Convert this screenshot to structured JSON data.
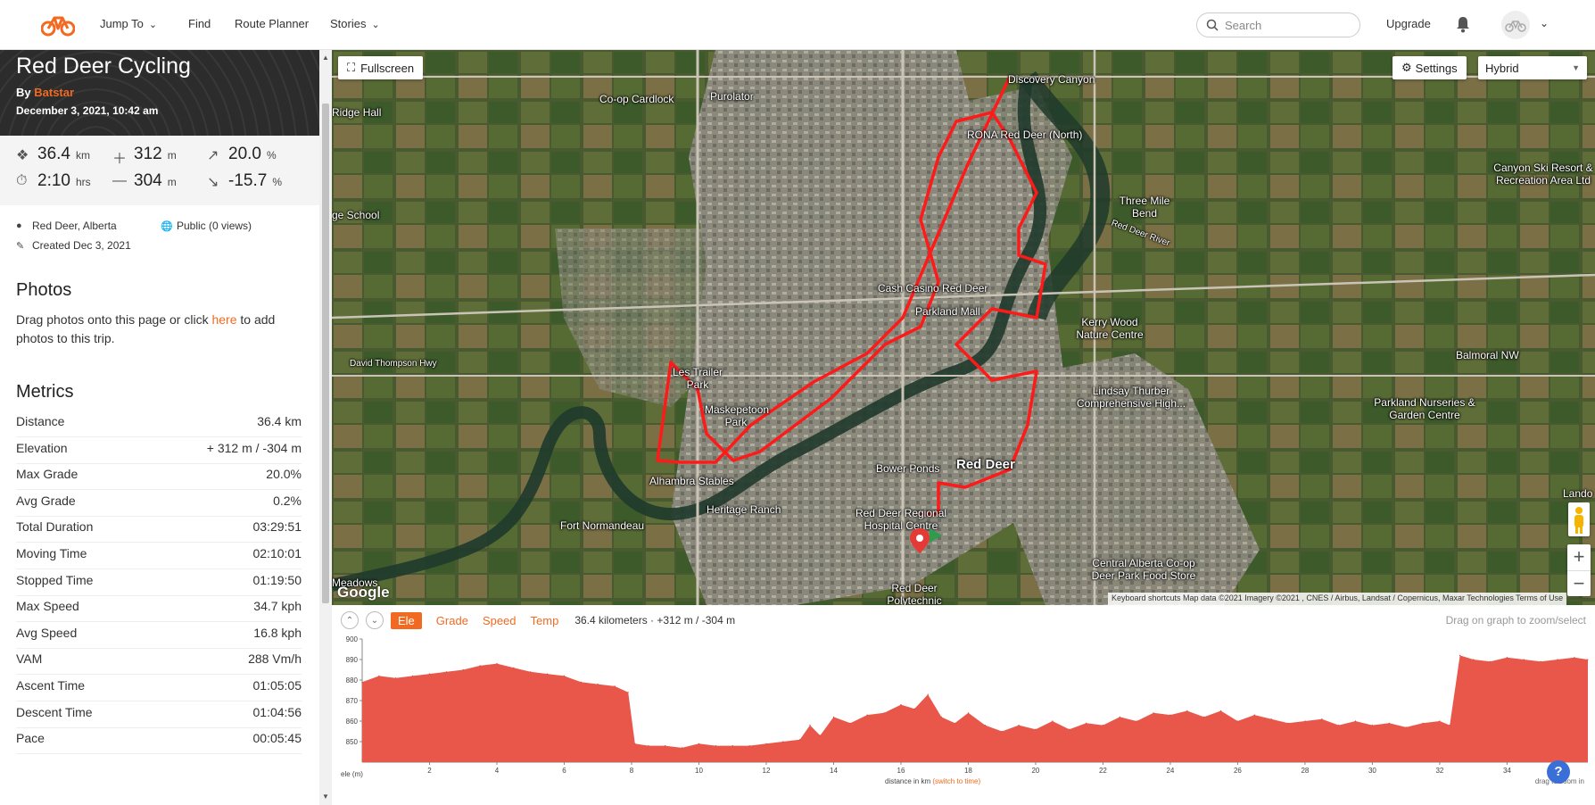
{
  "nav": {
    "jump_to": "Jump To",
    "find": "Find",
    "route_planner": "Route Planner",
    "stories": "Stories",
    "search_placeholder": "Search",
    "upgrade": "Upgrade"
  },
  "trip": {
    "title": "Red Deer Cycling",
    "by_label": "By",
    "author": "Batstar",
    "date": "December 3, 2021, 10:42 am"
  },
  "stats": {
    "distance": {
      "value": "36.4",
      "unit": "km"
    },
    "gain": {
      "value": "312",
      "unit": "m"
    },
    "max_grade": {
      "value": "20.0",
      "unit": "%"
    },
    "time": {
      "value": "2:10",
      "unit": "hrs"
    },
    "loss": {
      "value": "304",
      "unit": "m"
    },
    "min_grade": {
      "value": "-15.7",
      "unit": "%"
    }
  },
  "meta": {
    "location": "Red Deer, Alberta",
    "visibility": "Public (0 views)",
    "created": "Created Dec 3, 2021"
  },
  "photos": {
    "title": "Photos",
    "text_before": "Drag photos onto this page or click ",
    "link": "here",
    "text_after": " to add photos to this trip."
  },
  "metrics": {
    "title": "Metrics",
    "rows": [
      {
        "label": "Distance",
        "value": "36.4 km"
      },
      {
        "label": "Elevation",
        "value": "+ 312 m / -304 m"
      },
      {
        "label": "Max Grade",
        "value": "20.0%"
      },
      {
        "label": "Avg Grade",
        "value": "0.2%"
      },
      {
        "label": "Total Duration",
        "value": "03:29:51"
      },
      {
        "label": "Moving Time",
        "value": "02:10:01"
      },
      {
        "label": "Stopped Time",
        "value": "01:19:50"
      },
      {
        "label": "Max Speed",
        "value": "34.7 kph"
      },
      {
        "label": "Avg Speed",
        "value": "16.8 kph"
      },
      {
        "label": "VAM",
        "value": "288 Vm/h"
      },
      {
        "label": "Ascent Time",
        "value": "01:05:05"
      },
      {
        "label": "Descent Time",
        "value": "01:04:56"
      },
      {
        "label": "Pace",
        "value": "00:05:45"
      }
    ]
  },
  "map": {
    "fullscreen": "Fullscreen",
    "settings": "Settings",
    "layer": "Hybrid",
    "footer": "Keyboard shortcuts   Map data ©2021 Imagery ©2021 , CNES / Airbus, Landsat / Copernicus, Maxar Technologies   Terms of Use",
    "google": "Google",
    "labels": [
      "Discovery Canyon",
      "Co-op Cardlock",
      "Purolator",
      "Ridge Hall",
      "RONA Red Deer (North)",
      "Three Mile Bend",
      "Red Deer River",
      "Canyon Ski Resort & Recreation Area Ltd",
      "ge School",
      "Cash Casino Red Deer",
      "Parkland Mall",
      "Kerry Wood Nature Centre",
      "Balmoral NW",
      "David Thompson Hwy",
      "Les Trailer Park",
      "Lindsay Thurber Comprehensive High...",
      "Parkland Nurseries & Garden Centre",
      "Maskepetoon Park",
      "Red Deer",
      "Bower Ponds",
      "Alhambra Stables",
      "Heritage Ranch",
      "Red Deer Regional Hospital Centre",
      "Fort Normandeau",
      "Central Alberta Co-op Deer Park Food Store",
      "Red Deer Polytechnic",
      "Meadows",
      "Lando"
    ]
  },
  "elevation": {
    "tabs": [
      "Ele",
      "Grade",
      "Speed",
      "Temp"
    ],
    "active_tab": "Ele",
    "summary": "36.4 kilometers · +312 m / -304 m",
    "drag_note": "Drag on graph to zoom/select",
    "x_label": "distance in km",
    "x_switch": "(switch to time)",
    "y_label": "ele (m)",
    "zoom_note": "drag to zoom in",
    "fill_color": "#e8574a"
  },
  "chart_data": {
    "type": "area",
    "title": "",
    "xlabel": "distance in km",
    "ylabel": "ele (m)",
    "xlim": [
      0,
      36.4
    ],
    "ylim": [
      840,
      900
    ],
    "x_ticks": [
      2,
      4,
      6,
      8,
      10,
      12,
      14,
      16,
      18,
      20,
      22,
      24,
      26,
      28,
      30,
      32,
      34
    ],
    "y_ticks": [
      850,
      860,
      870,
      880,
      890,
      900
    ],
    "series": [
      {
        "x": [
          0,
          0.5,
          1,
          1.5,
          2,
          2.5,
          3,
          3.5,
          4,
          4.5,
          5,
          5.5,
          6,
          6.5,
          7,
          7.5,
          7.9,
          8.1,
          8.5,
          9,
          9.5,
          10,
          10.5,
          11,
          11.5,
          12,
          12.5,
          13,
          13.3,
          13.6,
          14,
          14.5,
          15,
          15.5,
          16,
          16.4,
          16.8,
          17.2,
          17.6,
          18,
          18.5,
          19,
          19.5,
          20,
          20.5,
          21,
          21.5,
          22,
          22.5,
          23,
          23.5,
          24,
          24.5,
          25,
          25.5,
          26,
          26.5,
          27,
          27.5,
          28,
          28.5,
          29,
          29.5,
          30,
          30.5,
          31,
          31.5,
          32,
          32.3,
          32.6,
          33,
          33.5,
          34,
          34.5,
          35,
          35.5,
          36,
          36.4
        ],
        "y": [
          879,
          882,
          881,
          882,
          883,
          884,
          885,
          887,
          888,
          886,
          884,
          883,
          882,
          879,
          878,
          877,
          874,
          849,
          848,
          848,
          847,
          849,
          848,
          848,
          848,
          849,
          850,
          851,
          858,
          853,
          862,
          859,
          863,
          864,
          868,
          866,
          873,
          862,
          859,
          864,
          858,
          855,
          858,
          856,
          860,
          856,
          859,
          858,
          862,
          860,
          864,
          863,
          865,
          862,
          865,
          860,
          863,
          861,
          859,
          860,
          861,
          858,
          860,
          858,
          859,
          857,
          859,
          860,
          858,
          892,
          890,
          889,
          891,
          890,
          889,
          890,
          891,
          890
        ]
      }
    ]
  }
}
